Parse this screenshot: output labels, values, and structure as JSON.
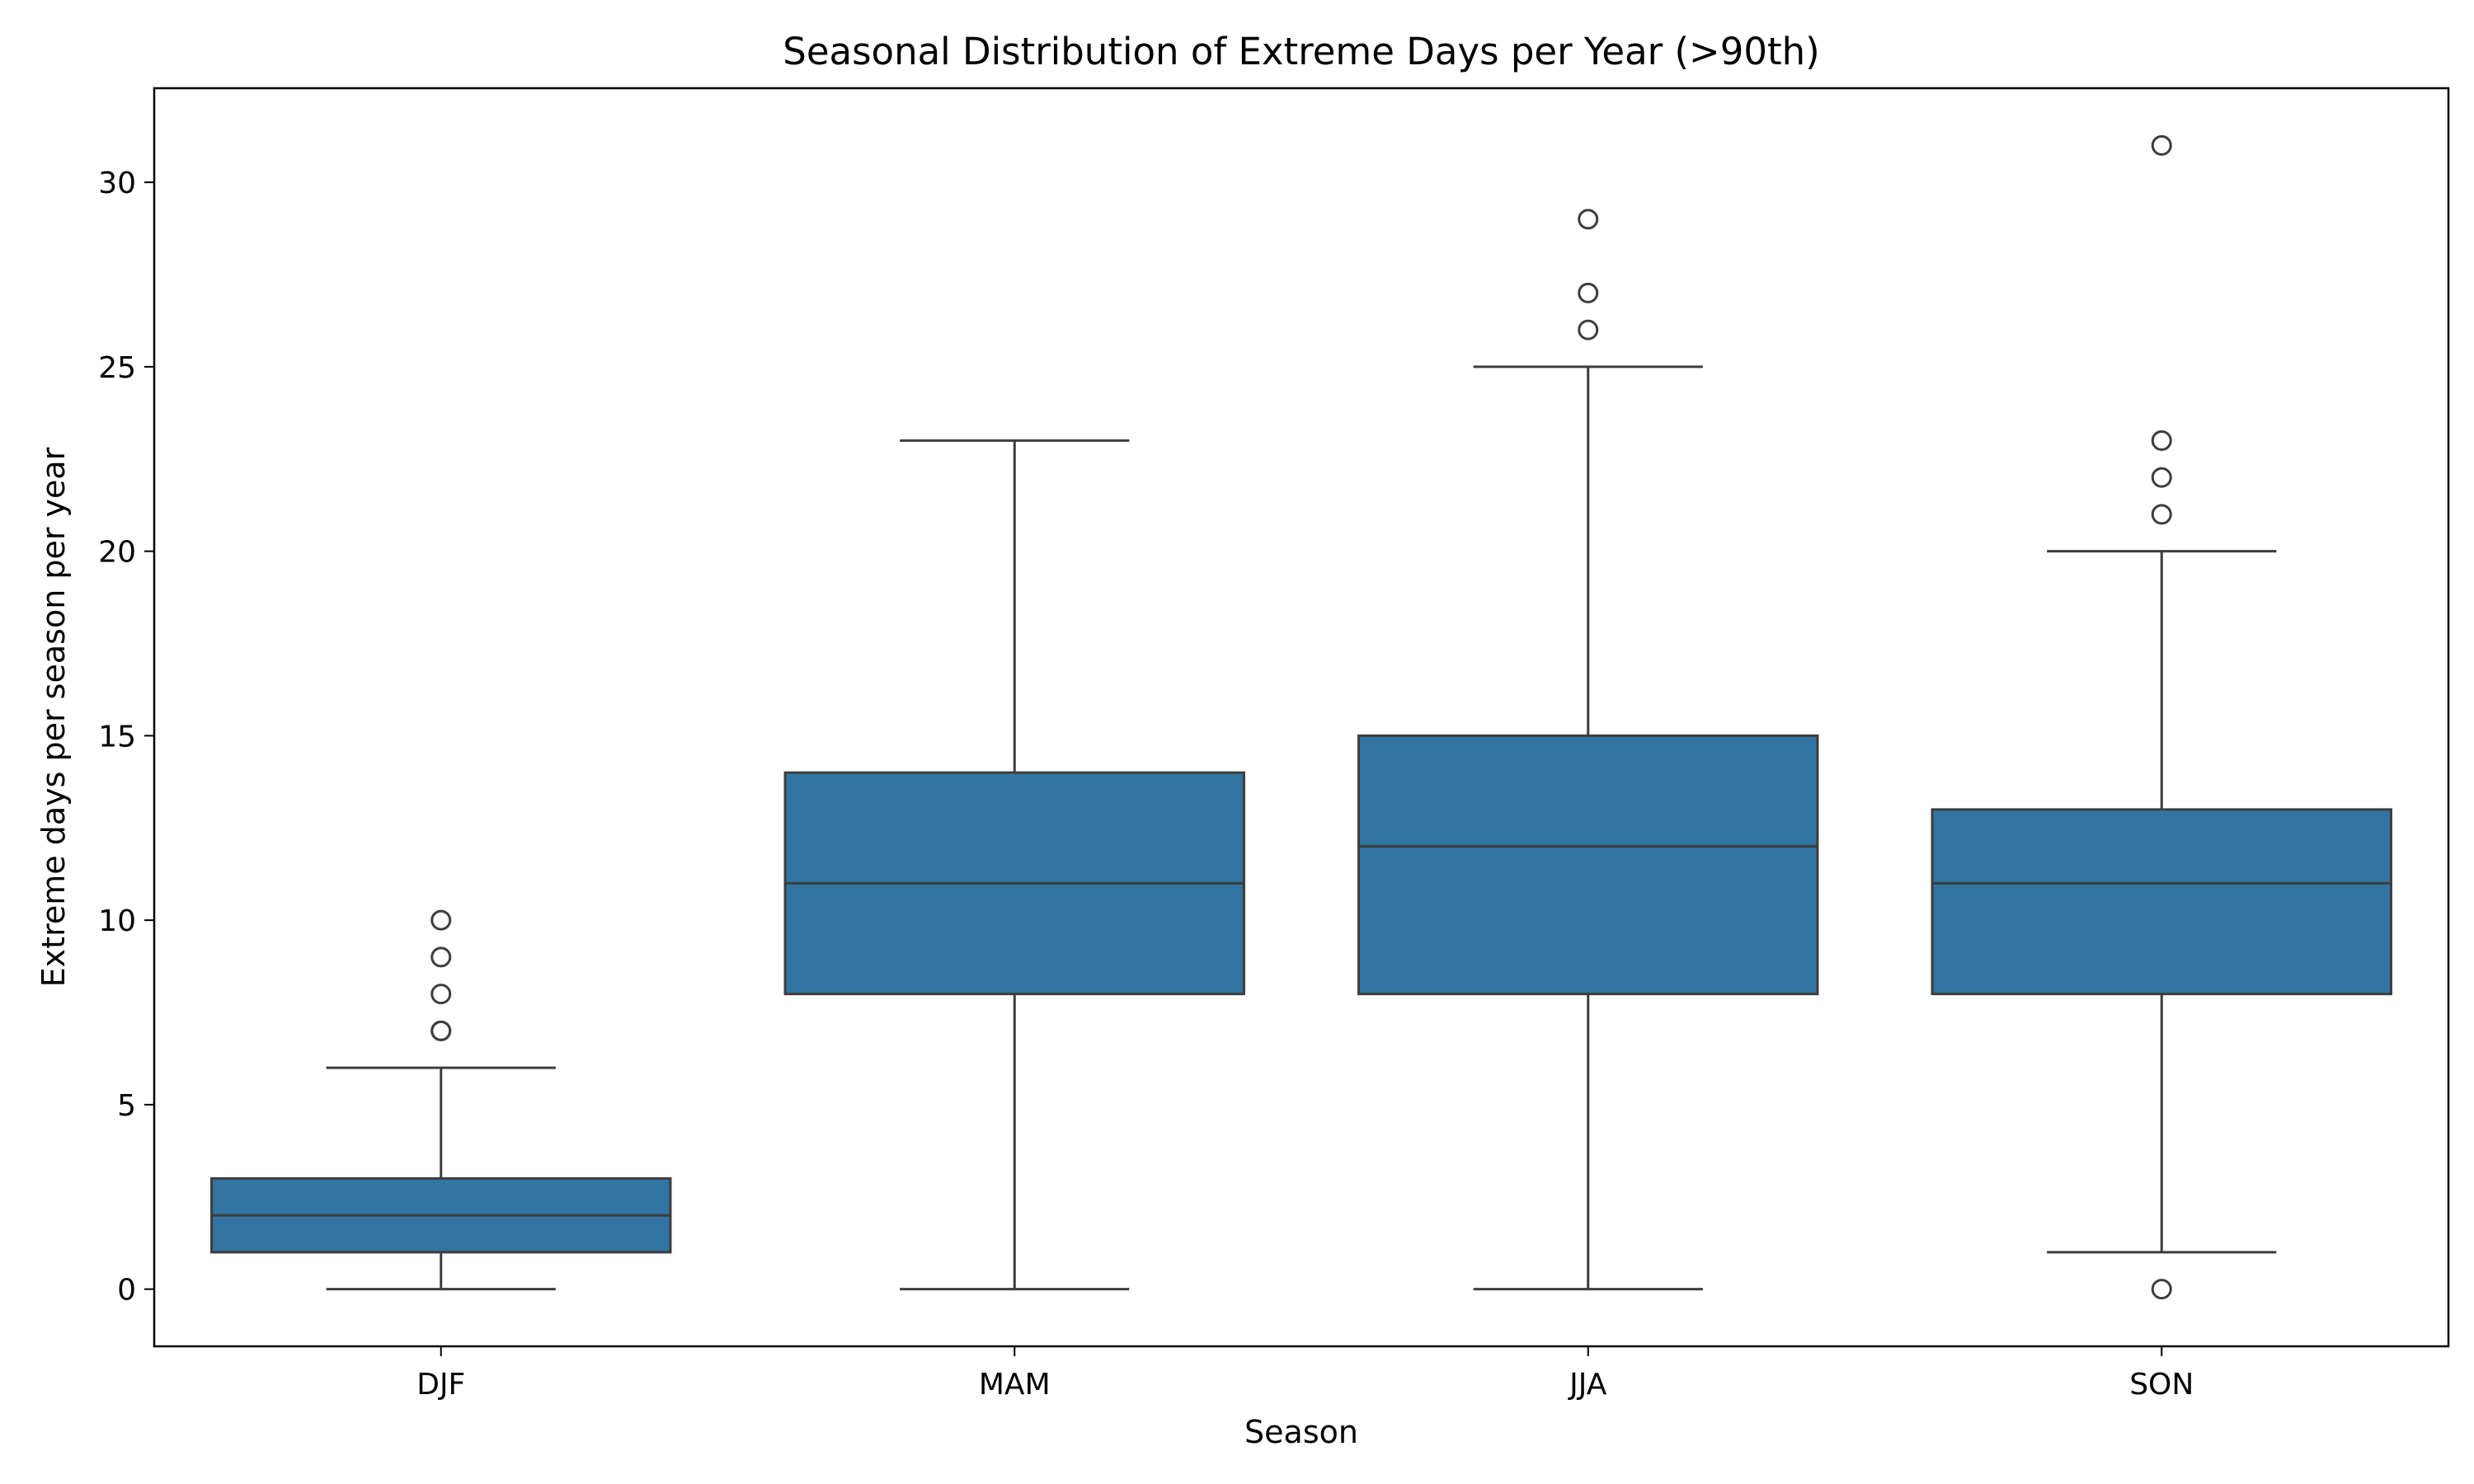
{
  "chart_data": {
    "type": "box",
    "title": "Seasonal Distribution of Extreme Days per Year (>90th)",
    "xlabel": "Season",
    "ylabel": "Extreme days per season per year",
    "ylim": [
      -1.55,
      32.55
    ],
    "yticks": [
      0,
      5,
      10,
      15,
      20,
      25,
      30
    ],
    "grid": false,
    "legend": "none",
    "box_color": "#3274a1",
    "line_color": "#3d3d3d",
    "categories": [
      "DJF",
      "MAM",
      "JJA",
      "SON"
    ],
    "boxes": [
      {
        "category": "DJF",
        "whisker_low": 0,
        "q1": 1,
        "median": 2,
        "q3": 3,
        "whisker_high": 6,
        "outliers": [
          7,
          7,
          8,
          9,
          10
        ]
      },
      {
        "category": "MAM",
        "whisker_low": 0,
        "q1": 8,
        "median": 11,
        "q3": 14,
        "whisker_high": 23,
        "outliers": []
      },
      {
        "category": "JJA",
        "whisker_low": 0,
        "q1": 8,
        "median": 12,
        "q3": 15,
        "whisker_high": 25,
        "outliers": [
          26,
          27,
          29
        ]
      },
      {
        "category": "SON",
        "whisker_low": 1,
        "q1": 8,
        "median": 11,
        "q3": 13,
        "whisker_high": 20,
        "outliers": [
          0,
          21,
          22,
          23,
          31
        ]
      }
    ]
  }
}
